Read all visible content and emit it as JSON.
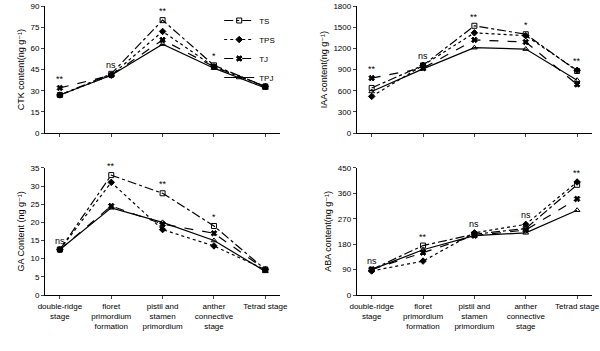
{
  "chart_data": [
    {
      "type": "line",
      "y_label": "CTK content(ng g⁻¹)",
      "categories": [
        "double-ridge stage",
        "floret primordium formation",
        "pistil and stamen primordium",
        "anther connective stage",
        "Tetrad stage"
      ],
      "series": [
        {
          "name": "TS",
          "color": "#000000",
          "marker": "square-open",
          "line_style": "dashdot",
          "values": [
            27,
            42,
            80,
            48,
            33
          ]
        },
        {
          "name": "TPS",
          "color": "#000000",
          "marker": "diamond",
          "line_style": "dot",
          "values": [
            27,
            41,
            72,
            47,
            33
          ]
        },
        {
          "name": "TJ",
          "color": "#000000",
          "marker": "x",
          "line_style": "dash",
          "values": [
            32,
            41,
            66,
            47,
            33
          ]
        },
        {
          "name": "TPJ",
          "color": "#000000",
          "marker": "triangle-up-open",
          "line_style": "solid",
          "values": [
            27,
            41,
            63,
            46,
            32
          ]
        }
      ],
      "significance": [
        "**",
        "ns",
        "**",
        "*",
        null
      ],
      "ylim": [
        0,
        90
      ],
      "yticks": [
        0,
        15,
        30,
        45,
        60,
        75,
        90
      ],
      "grid": false,
      "legend": "upper right",
      "tick_labels": "y"
    },
    {
      "type": "line",
      "y_label": "IAA content(ng g⁻¹)",
      "categories": [
        "double-ridge stage",
        "floret primordium formation",
        "pistil and stamen primordium",
        "anther connective stage",
        "Tetrad stage"
      ],
      "series": [
        {
          "name": "TS",
          "color": "#000000",
          "marker": "square-open",
          "line_style": "dashdot",
          "values": [
            640,
            960,
            1520,
            1400,
            880
          ]
        },
        {
          "name": "TPS",
          "color": "#000000",
          "marker": "diamond",
          "line_style": "dot",
          "values": [
            520,
            960,
            1420,
            1380,
            890
          ]
        },
        {
          "name": "TJ",
          "color": "#000000",
          "marker": "x",
          "line_style": "dash",
          "values": [
            780,
            920,
            1320,
            1290,
            690
          ]
        },
        {
          "name": "TPJ",
          "color": "#000000",
          "marker": "triangle-up-open",
          "line_style": "solid",
          "values": [
            590,
            910,
            1210,
            1190,
            750
          ]
        }
      ],
      "significance": [
        "**",
        "ns",
        "**",
        "*",
        "**"
      ],
      "ylim": [
        0,
        1800
      ],
      "yticks": [
        0,
        300,
        600,
        900,
        1200,
        1500,
        1800
      ],
      "grid": false,
      "tick_labels": "y"
    },
    {
      "type": "line",
      "y_label": "GA Content (ng g⁻¹)",
      "categories": [
        "double-ridge stage",
        "floret primordium formation",
        "pistil and stamen primordium",
        "anther connective stage",
        "Tetrad stage"
      ],
      "series": [
        {
          "name": "TS",
          "color": "#000000",
          "marker": "square-open",
          "line_style": "dashdot",
          "values": [
            12.5,
            33,
            28,
            19,
            7
          ]
        },
        {
          "name": "TPS",
          "color": "#000000",
          "marker": "diamond",
          "line_style": "dot",
          "values": [
            12.5,
            31,
            18,
            13.5,
            7
          ]
        },
        {
          "name": "TJ",
          "color": "#000000",
          "marker": "x",
          "line_style": "dash",
          "values": [
            12.5,
            24.5,
            19.5,
            17,
            7
          ]
        },
        {
          "name": "TPJ",
          "color": "#000000",
          "marker": "triangle-up-open",
          "line_style": "solid",
          "values": [
            12.5,
            24,
            20,
            15,
            6.5
          ]
        }
      ],
      "significance": [
        "ns",
        "**",
        "**",
        "*",
        null
      ],
      "ylim": [
        0,
        35
      ],
      "yticks": [
        0,
        5,
        10,
        15,
        20,
        25,
        30,
        35
      ],
      "grid": false
    },
    {
      "type": "line",
      "y_label": "ABA content(ng g⁻¹)",
      "categories": [
        "double-ridge stage",
        "floret primordium formation",
        "pistil and stamen primordium",
        "anther connective stage",
        "Tetrad stage"
      ],
      "series": [
        {
          "name": "TS",
          "color": "#000000",
          "marker": "square-open",
          "line_style": "dashdot",
          "values": [
            90,
            175,
            215,
            235,
            390
          ]
        },
        {
          "name": "TPS",
          "color": "#000000",
          "marker": "diamond",
          "line_style": "dot",
          "values": [
            85,
            120,
            220,
            250,
            400
          ]
        },
        {
          "name": "TJ",
          "color": "#000000",
          "marker": "x",
          "line_style": "dash",
          "values": [
            90,
            150,
            210,
            230,
            340
          ]
        },
        {
          "name": "TPJ",
          "color": "#000000",
          "marker": "triangle-up-open",
          "line_style": "solid",
          "values": [
            90,
            160,
            210,
            220,
            300
          ]
        }
      ],
      "significance": [
        "ns",
        "**",
        "ns",
        "ns",
        "**"
      ],
      "ylim": [
        0,
        450
      ],
      "yticks": [
        0,
        90,
        180,
        270,
        360,
        450
      ],
      "grid": false
    }
  ]
}
